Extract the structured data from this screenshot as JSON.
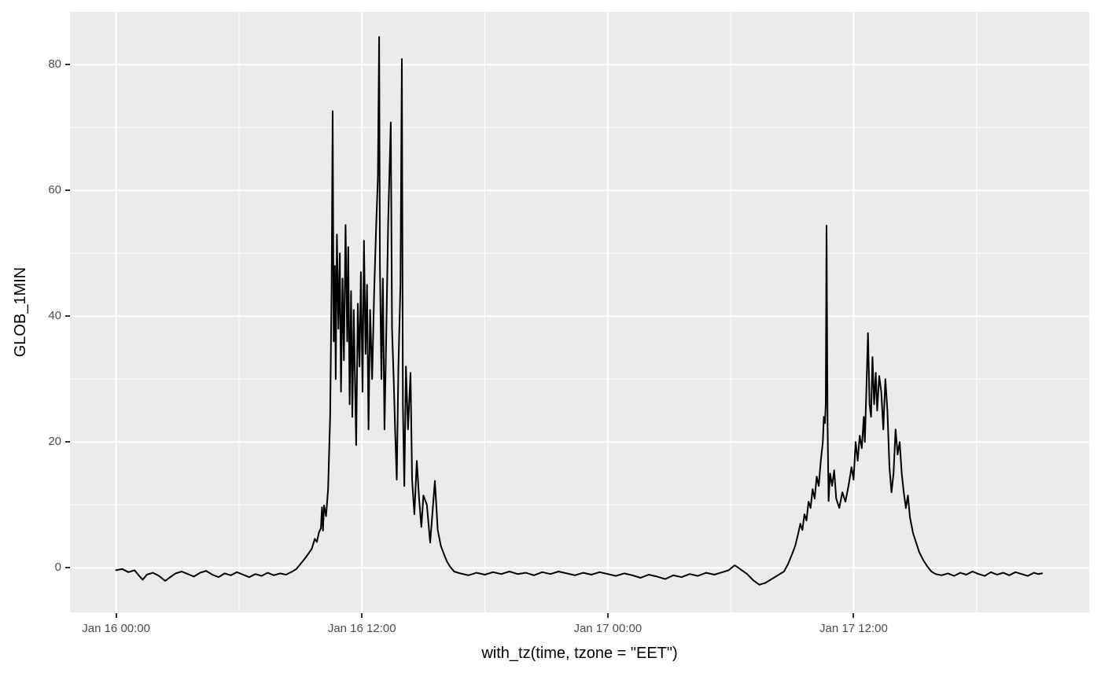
{
  "chart_data": {
    "type": "line",
    "title": "",
    "xlabel": "with_tz(time, tzone = \"EET\")",
    "ylabel": "GLOB_1MIN",
    "x_unit": "hours since Jan 16 00:00 EET",
    "xlim": [
      -2.25,
      47.5
    ],
    "ylim": [
      -7.1,
      88.4
    ],
    "grid": "white major+minor gridlines on grey panel, ggplot2 theme_grey",
    "legend": "none",
    "xticks": [
      {
        "t": 0,
        "label": "Jan 16 00:00"
      },
      {
        "t": 12,
        "label": "Jan 16 12:00"
      },
      {
        "t": 24,
        "label": "Jan 17 00:00"
      },
      {
        "t": 36,
        "label": "Jan 17 12:00"
      }
    ],
    "xticks_minor": [
      6,
      18,
      30,
      42
    ],
    "yticks": [
      {
        "v": 0,
        "label": "0"
      },
      {
        "v": 20,
        "label": "20"
      },
      {
        "v": 40,
        "label": "40"
      },
      {
        "v": 60,
        "label": "60"
      },
      {
        "v": 80,
        "label": "80"
      }
    ],
    "yticks_minor": [
      10,
      30,
      50,
      70
    ],
    "colors": {
      "panel_bg": "#ebebeb",
      "figure_bg": "#ffffff",
      "gridline": "#ffffff",
      "line": "#000000",
      "tick_label": "#4d4d4d",
      "axis_title": "#000000",
      "tick_mark": "#333333"
    },
    "series": [
      {
        "name": "GLOB_1MIN",
        "points": [
          [
            0,
            -0.4
          ],
          [
            0.3,
            -0.2
          ],
          [
            0.6,
            -0.7
          ],
          [
            0.9,
            -0.4
          ],
          [
            1.1,
            -1.2
          ],
          [
            1.3,
            -1.9
          ],
          [
            1.5,
            -1.1
          ],
          [
            1.8,
            -0.8
          ],
          [
            2.1,
            -1.3
          ],
          [
            2.4,
            -2.1
          ],
          [
            2.6,
            -1.6
          ],
          [
            2.9,
            -0.9
          ],
          [
            3.2,
            -0.6
          ],
          [
            3.5,
            -1.0
          ],
          [
            3.8,
            -1.4
          ],
          [
            4.1,
            -0.8
          ],
          [
            4.4,
            -0.5
          ],
          [
            4.7,
            -1.1
          ],
          [
            5.0,
            -1.5
          ],
          [
            5.3,
            -0.9
          ],
          [
            5.6,
            -1.2
          ],
          [
            5.9,
            -0.7
          ],
          [
            6.2,
            -1.1
          ],
          [
            6.5,
            -1.5
          ],
          [
            6.8,
            -1.0
          ],
          [
            7.1,
            -1.3
          ],
          [
            7.4,
            -0.8
          ],
          [
            7.7,
            -1.2
          ],
          [
            8.0,
            -0.9
          ],
          [
            8.3,
            -1.1
          ],
          [
            8.6,
            -0.6
          ],
          [
            8.8,
            -0.2
          ],
          [
            9.0,
            0.6
          ],
          [
            9.2,
            1.4
          ],
          [
            9.4,
            2.3
          ],
          [
            9.55,
            3.0
          ],
          [
            9.7,
            4.6
          ],
          [
            9.8,
            4.1
          ],
          [
            9.9,
            5.6
          ],
          [
            10.0,
            6.3
          ],
          [
            10.05,
            9.6
          ],
          [
            10.1,
            5.9
          ],
          [
            10.15,
            9.9
          ],
          [
            10.25,
            8.2
          ],
          [
            10.35,
            12.5
          ],
          [
            10.45,
            24
          ],
          [
            10.52,
            45
          ],
          [
            10.57,
            72.6
          ],
          [
            10.62,
            36
          ],
          [
            10.68,
            48
          ],
          [
            10.72,
            30
          ],
          [
            10.78,
            53
          ],
          [
            10.85,
            38
          ],
          [
            10.92,
            50
          ],
          [
            10.98,
            28
          ],
          [
            11.05,
            46
          ],
          [
            11.12,
            33
          ],
          [
            11.2,
            54.5
          ],
          [
            11.28,
            36
          ],
          [
            11.33,
            51
          ],
          [
            11.4,
            26
          ],
          [
            11.47,
            44
          ],
          [
            11.53,
            24
          ],
          [
            11.6,
            41
          ],
          [
            11.72,
            19.5
          ],
          [
            11.8,
            42
          ],
          [
            11.88,
            32
          ],
          [
            11.95,
            47
          ],
          [
            12.03,
            28
          ],
          [
            12.1,
            52
          ],
          [
            12.18,
            34
          ],
          [
            12.25,
            45
          ],
          [
            12.32,
            22
          ],
          [
            12.4,
            41
          ],
          [
            12.5,
            30
          ],
          [
            12.6,
            44
          ],
          [
            12.7,
            55
          ],
          [
            12.78,
            62
          ],
          [
            12.84,
            84.4
          ],
          [
            12.88,
            48
          ],
          [
            12.95,
            30
          ],
          [
            13.02,
            46
          ],
          [
            13.1,
            22
          ],
          [
            13.18,
            36
          ],
          [
            13.28,
            55
          ],
          [
            13.41,
            70.8
          ],
          [
            13.47,
            38
          ],
          [
            13.55,
            30
          ],
          [
            13.62,
            22
          ],
          [
            13.7,
            14
          ],
          [
            13.78,
            32
          ],
          [
            13.88,
            45
          ],
          [
            13.95,
            80.9
          ],
          [
            14.0,
            26
          ],
          [
            14.07,
            13
          ],
          [
            14.15,
            32
          ],
          [
            14.25,
            22
          ],
          [
            14.37,
            31
          ],
          [
            14.45,
            14
          ],
          [
            14.56,
            8.5
          ],
          [
            14.68,
            17
          ],
          [
            14.79,
            11
          ],
          [
            14.9,
            6.5
          ],
          [
            15.0,
            11.5
          ],
          [
            15.17,
            10
          ],
          [
            15.33,
            4
          ],
          [
            15.56,
            13.8
          ],
          [
            15.7,
            6
          ],
          [
            15.85,
            3.5
          ],
          [
            16.0,
            2.2
          ],
          [
            16.15,
            1.0
          ],
          [
            16.3,
            0.2
          ],
          [
            16.5,
            -0.6
          ],
          [
            16.8,
            -0.9
          ],
          [
            17.2,
            -1.2
          ],
          [
            17.6,
            -0.8
          ],
          [
            18.0,
            -1.1
          ],
          [
            18.4,
            -0.7
          ],
          [
            18.8,
            -1.0
          ],
          [
            19.2,
            -0.6
          ],
          [
            19.6,
            -1.0
          ],
          [
            20.0,
            -0.8
          ],
          [
            20.4,
            -1.2
          ],
          [
            20.8,
            -0.7
          ],
          [
            21.2,
            -1.0
          ],
          [
            21.6,
            -0.6
          ],
          [
            22.0,
            -0.9
          ],
          [
            22.4,
            -1.2
          ],
          [
            22.8,
            -0.8
          ],
          [
            23.2,
            -1.1
          ],
          [
            23.6,
            -0.7
          ],
          [
            24.0,
            -1.0
          ],
          [
            24.4,
            -1.3
          ],
          [
            24.8,
            -0.9
          ],
          [
            25.2,
            -1.2
          ],
          [
            25.6,
            -1.6
          ],
          [
            26.0,
            -1.1
          ],
          [
            26.4,
            -1.4
          ],
          [
            26.8,
            -1.8
          ],
          [
            27.2,
            -1.2
          ],
          [
            27.6,
            -1.5
          ],
          [
            28.0,
            -1.0
          ],
          [
            28.4,
            -1.3
          ],
          [
            28.8,
            -0.8
          ],
          [
            29.2,
            -1.1
          ],
          [
            29.6,
            -0.7
          ],
          [
            29.9,
            -0.4
          ],
          [
            30.2,
            0.4
          ],
          [
            30.5,
            -0.3
          ],
          [
            30.8,
            -1.0
          ],
          [
            31.1,
            -2.0
          ],
          [
            31.4,
            -2.7
          ],
          [
            31.7,
            -2.4
          ],
          [
            32.0,
            -1.8
          ],
          [
            32.3,
            -1.2
          ],
          [
            32.6,
            -0.6
          ],
          [
            32.8,
            0.6
          ],
          [
            33.0,
            2.2
          ],
          [
            33.15,
            3.5
          ],
          [
            33.3,
            5.5
          ],
          [
            33.4,
            7
          ],
          [
            33.5,
            6
          ],
          [
            33.6,
            8.5
          ],
          [
            33.7,
            7.5
          ],
          [
            33.8,
            10.5
          ],
          [
            33.9,
            9.5
          ],
          [
            34.0,
            12.5
          ],
          [
            34.1,
            11
          ],
          [
            34.2,
            14.5
          ],
          [
            34.3,
            13
          ],
          [
            34.4,
            17
          ],
          [
            34.5,
            20
          ],
          [
            34.55,
            24
          ],
          [
            34.6,
            23
          ],
          [
            34.64,
            26
          ],
          [
            34.68,
            54.4
          ],
          [
            34.73,
            23
          ],
          [
            34.78,
            10.6
          ],
          [
            34.85,
            15
          ],
          [
            34.95,
            13
          ],
          [
            35.05,
            15.5
          ],
          [
            35.15,
            11
          ],
          [
            35.3,
            9.5
          ],
          [
            35.45,
            12
          ],
          [
            35.6,
            10.5
          ],
          [
            35.75,
            13
          ],
          [
            35.9,
            16
          ],
          [
            36.0,
            14
          ],
          [
            36.1,
            20
          ],
          [
            36.2,
            17
          ],
          [
            36.3,
            21
          ],
          [
            36.4,
            19
          ],
          [
            36.5,
            24
          ],
          [
            36.55,
            20
          ],
          [
            36.62,
            28
          ],
          [
            36.7,
            37.3
          ],
          [
            36.78,
            26
          ],
          [
            36.85,
            24
          ],
          [
            36.92,
            33.5
          ],
          [
            37.0,
            26
          ],
          [
            37.08,
            31
          ],
          [
            37.15,
            25
          ],
          [
            37.25,
            30.5
          ],
          [
            37.35,
            28
          ],
          [
            37.45,
            22
          ],
          [
            37.55,
            30
          ],
          [
            37.65,
            25
          ],
          [
            37.75,
            16
          ],
          [
            37.85,
            12
          ],
          [
            37.95,
            15
          ],
          [
            38.05,
            22
          ],
          [
            38.15,
            18
          ],
          [
            38.25,
            20
          ],
          [
            38.35,
            15
          ],
          [
            38.45,
            12
          ],
          [
            38.55,
            9.5
          ],
          [
            38.65,
            11.5
          ],
          [
            38.75,
            8
          ],
          [
            38.9,
            5.5
          ],
          [
            39.05,
            4
          ],
          [
            39.2,
            2.5
          ],
          [
            39.4,
            1.2
          ],
          [
            39.6,
            0.2
          ],
          [
            39.8,
            -0.6
          ],
          [
            40.0,
            -1.0
          ],
          [
            40.3,
            -1.2
          ],
          [
            40.6,
            -0.9
          ],
          [
            40.9,
            -1.3
          ],
          [
            41.2,
            -0.8
          ],
          [
            41.5,
            -1.1
          ],
          [
            41.8,
            -0.6
          ],
          [
            42.1,
            -1.0
          ],
          [
            42.4,
            -1.3
          ],
          [
            42.7,
            -0.7
          ],
          [
            43.0,
            -1.1
          ],
          [
            43.3,
            -0.8
          ],
          [
            43.6,
            -1.2
          ],
          [
            43.9,
            -0.7
          ],
          [
            44.2,
            -1.0
          ],
          [
            44.5,
            -1.3
          ],
          [
            44.8,
            -0.8
          ],
          [
            45.0,
            -1.0
          ],
          [
            45.2,
            -0.9
          ]
        ]
      }
    ]
  }
}
